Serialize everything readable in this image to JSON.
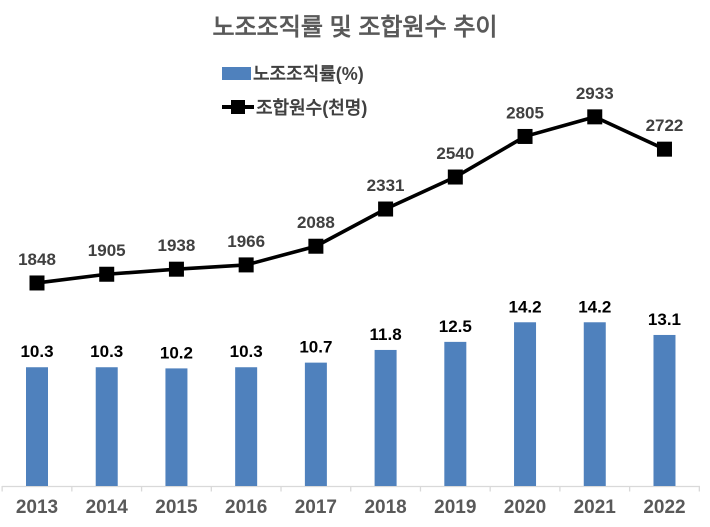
{
  "chart_data": {
    "type": "combo",
    "title": "노조조직률 및 조합원수 추이",
    "categories": [
      "2013",
      "2014",
      "2015",
      "2016",
      "2017",
      "2018",
      "2019",
      "2020",
      "2021",
      "2022"
    ],
    "series": [
      {
        "name": "노조조직률(%)",
        "type": "bar",
        "color": "#4f81bd",
        "values": [
          10.3,
          10.3,
          10.2,
          10.3,
          10.7,
          11.8,
          12.5,
          14.2,
          14.2,
          13.1
        ],
        "data_labels": true,
        "data_label_color": "#000000"
      },
      {
        "name": "조합원수(천명)",
        "type": "line",
        "color": "#000000",
        "marker": "square",
        "values": [
          1848,
          1905,
          1938,
          1966,
          2088,
          2331,
          2540,
          2805,
          2933,
          2722
        ],
        "data_labels": true,
        "data_label_color": "#404040"
      }
    ],
    "legend_position": "top-left",
    "grid": false,
    "axes": {
      "x": {
        "labels_color": "#595959",
        "line_color": "#d9d9d9",
        "tick_marks": true
      },
      "y_primary": {
        "visible": false
      },
      "y_secondary": {
        "visible": false
      }
    }
  }
}
